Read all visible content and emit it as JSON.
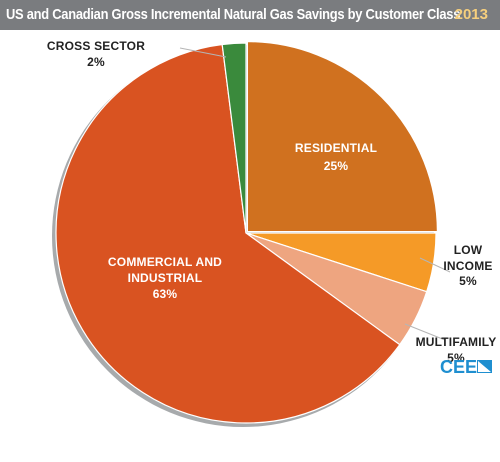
{
  "header": {
    "title": "US and Canadian Gross Incremental Natural Gas Savings by Customer Class",
    "year": "2013"
  },
  "logo": {
    "text": "CEE"
  },
  "colors": {
    "header_bg": "#7a7c7f",
    "year": "#f6cf7d",
    "residential": "#d0711f",
    "low_income": "#f59a27",
    "multifamily": "#eea580",
    "commercial_industrial": "#d95321",
    "cross_sector": "#3a8a3c",
    "logo": "#1f8fd0"
  },
  "chart_data": {
    "type": "pie",
    "title": "US and Canadian Gross Incremental Natural Gas Savings by Customer Class",
    "subtitle": "2013",
    "slices": [
      {
        "name": "RESIDENTIAL",
        "value": 25,
        "label": "25%",
        "color": "#d0711f",
        "exploded": true
      },
      {
        "name": "LOW INCOME",
        "value": 5,
        "label": "5%",
        "color": "#f59a27",
        "exploded": false
      },
      {
        "name": "MULTIFAMILY",
        "value": 5,
        "label": "5%",
        "color": "#eea580",
        "exploded": false
      },
      {
        "name": "COMMERCIAL AND INDUSTRIAL",
        "value": 63,
        "label": "63%",
        "color": "#d95321",
        "exploded": false
      },
      {
        "name": "CROSS SECTOR",
        "value": 2,
        "label": "2%",
        "color": "#3a8a3c",
        "exploded": false
      }
    ],
    "start_angle_deg": 0,
    "direction": "clockwise"
  }
}
